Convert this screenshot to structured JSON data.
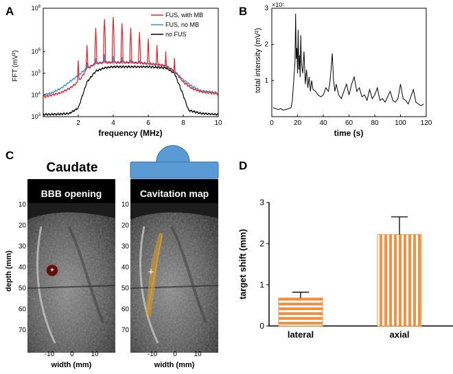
{
  "panels": {
    "a": "A",
    "b": "B",
    "c": "C",
    "d": "D"
  },
  "chart_data": [
    {
      "panel": "A",
      "type": "line",
      "title": "",
      "xlabel": "frequency (MHz)",
      "ylabel": "FFT (mV²)",
      "xlim": [
        0,
        10
      ],
      "ylim_log10": [
        3,
        8
      ],
      "x_ticks": [
        2,
        4,
        6,
        8,
        10
      ],
      "y_tick_exponents": [
        3,
        4,
        5,
        6,
        8
      ],
      "y_tick_base": "10",
      "legend_position": "top-right",
      "series": [
        {
          "name": "FUS, with MB",
          "color": "#e8202a",
          "baseline_points": [
            [
              0,
              3.9
            ],
            [
              0.5,
              4.0
            ],
            [
              1,
              4.1
            ],
            [
              1.5,
              4.3
            ],
            [
              2,
              4.6
            ],
            [
              2.5,
              5.2
            ],
            [
              3,
              5.45
            ],
            [
              3.5,
              5.5
            ],
            [
              4,
              5.5
            ],
            [
              5,
              5.5
            ],
            [
              6,
              5.45
            ],
            [
              7,
              5.35
            ],
            [
              7.5,
              5.1
            ],
            [
              8,
              4.6
            ],
            [
              8.5,
              4.3
            ],
            [
              9,
              4.15
            ],
            [
              10,
              4.05
            ]
          ],
          "peaks_mhz": [
            2.0,
            2.5,
            3.0,
            3.5,
            4.0,
            4.5,
            5.0,
            5.5,
            6.0,
            6.5,
            7.0,
            7.5
          ],
          "peak_log10": [
            5.6,
            6.3,
            7.1,
            7.5,
            7.6,
            7.3,
            7.1,
            6.9,
            6.6,
            6.3,
            6.0,
            5.7
          ]
        },
        {
          "name": "FUS, no MB",
          "color": "#3d8fd8",
          "baseline_points": [
            [
              0,
              4.0
            ],
            [
              0.5,
              4.1
            ],
            [
              1,
              4.3
            ],
            [
              1.5,
              4.6
            ],
            [
              2,
              4.9
            ],
            [
              2.5,
              5.25
            ],
            [
              3,
              5.45
            ],
            [
              3.5,
              5.5
            ],
            [
              4,
              5.5
            ],
            [
              5,
              5.5
            ],
            [
              6,
              5.45
            ],
            [
              7,
              5.35
            ],
            [
              7.5,
              5.1
            ],
            [
              8,
              4.7
            ],
            [
              8.5,
              4.4
            ],
            [
              9,
              4.2
            ],
            [
              10,
              4.1
            ]
          ],
          "peaks_mhz": [
            2.5,
            3.0,
            3.5,
            4.0,
            4.5,
            5.0,
            5.5
          ],
          "peak_log10": [
            5.5,
            5.7,
            5.9,
            5.8,
            5.75,
            5.65,
            5.6
          ]
        },
        {
          "name": "no FUS",
          "color": "#000000",
          "baseline_points": [
            [
              0,
              3.1
            ],
            [
              1,
              3.12
            ],
            [
              1.5,
              3.15
            ],
            [
              2,
              3.4
            ],
            [
              2.5,
              4.6
            ],
            [
              3,
              5.1
            ],
            [
              3.5,
              5.25
            ],
            [
              4,
              5.3
            ],
            [
              5,
              5.3
            ],
            [
              6,
              5.3
            ],
            [
              7,
              5.25
            ],
            [
              7.5,
              5.0
            ],
            [
              8,
              4.0
            ],
            [
              8.3,
              3.3
            ],
            [
              9,
              3.15
            ],
            [
              10,
              3.1
            ]
          ],
          "peaks_mhz": [],
          "peak_log10": []
        }
      ]
    },
    {
      "panel": "B",
      "type": "line",
      "title": "",
      "xlabel": "time (s)",
      "ylabel": "total intensity (mV²)",
      "scale_label": "×10⁷",
      "xlim": [
        0,
        120
      ],
      "ylim": [
        0,
        3
      ],
      "x_ticks": [
        0,
        20,
        40,
        60,
        80,
        100,
        120
      ],
      "y_ticks": [
        1,
        2,
        3
      ],
      "series": [
        {
          "name": "total intensity",
          "color": "#000000",
          "x": [
            1,
            3,
            5,
            7,
            9,
            11,
            13,
            15,
            16,
            17,
            18,
            18.5,
            19,
            19.5,
            20,
            20.5,
            21,
            21.5,
            22,
            22.5,
            23,
            24,
            25,
            26,
            27,
            28,
            29,
            30,
            31,
            32,
            34,
            36,
            38,
            40,
            42,
            44,
            45,
            46,
            47,
            48,
            49,
            50,
            52,
            54,
            56,
            58,
            60,
            62,
            64,
            66,
            68,
            70,
            72,
            74,
            76,
            78,
            80,
            82,
            84,
            86,
            88,
            90,
            92,
            94,
            96,
            98,
            100,
            102,
            104,
            106,
            108,
            110,
            112,
            114,
            116,
            118
          ],
          "y": [
            0.25,
            0.22,
            0.2,
            0.22,
            0.18,
            0.2,
            0.22,
            0.25,
            0.45,
            1.0,
            1.5,
            2.85,
            1.6,
            1.9,
            1.2,
            2.4,
            1.3,
            1.7,
            1.1,
            2.25,
            1.5,
            1.2,
            1.8,
            0.9,
            1.3,
            0.8,
            1.1,
            0.7,
            1.0,
            0.75,
            0.7,
            0.6,
            0.55,
            0.6,
            0.8,
            0.7,
            0.9,
            1.3,
            1.75,
            1.0,
            0.7,
            0.9,
            0.6,
            0.5,
            0.7,
            0.9,
            0.6,
            0.9,
            1.1,
            0.7,
            0.8,
            0.55,
            0.6,
            0.45,
            0.75,
            0.5,
            0.6,
            0.8,
            0.45,
            0.5,
            0.4,
            0.55,
            0.7,
            0.45,
            0.4,
            0.5,
            0.9,
            0.5,
            0.45,
            0.35,
            0.55,
            0.75,
            0.4,
            0.35,
            0.3,
            0.35
          ]
        }
      ]
    },
    {
      "panel": "D",
      "type": "bar",
      "title": "",
      "xlabel": "",
      "ylabel": "target shift (mm)",
      "ylim": [
        0,
        3
      ],
      "y_ticks": [
        0,
        1,
        2,
        3
      ],
      "categories": [
        "lateral",
        "axial"
      ],
      "values": [
        0.68,
        2.22
      ],
      "errors": [
        0.14,
        0.43
      ],
      "bar_color": "#f5913e"
    }
  ],
  "images": {
    "title": "Caudate",
    "left_label": "BBB opening",
    "right_label": "Cavitation map",
    "ylabel": "depth (mm)",
    "xlabel": "width (mm)",
    "y_ticks": [
      "10",
      "20",
      "30",
      "40",
      "50",
      "60",
      "70"
    ],
    "x_ticks": [
      "-10",
      "0",
      "10"
    ],
    "marker_left": "*",
    "marker_right": "+",
    "transducer_color": "#5b9bd5"
  }
}
